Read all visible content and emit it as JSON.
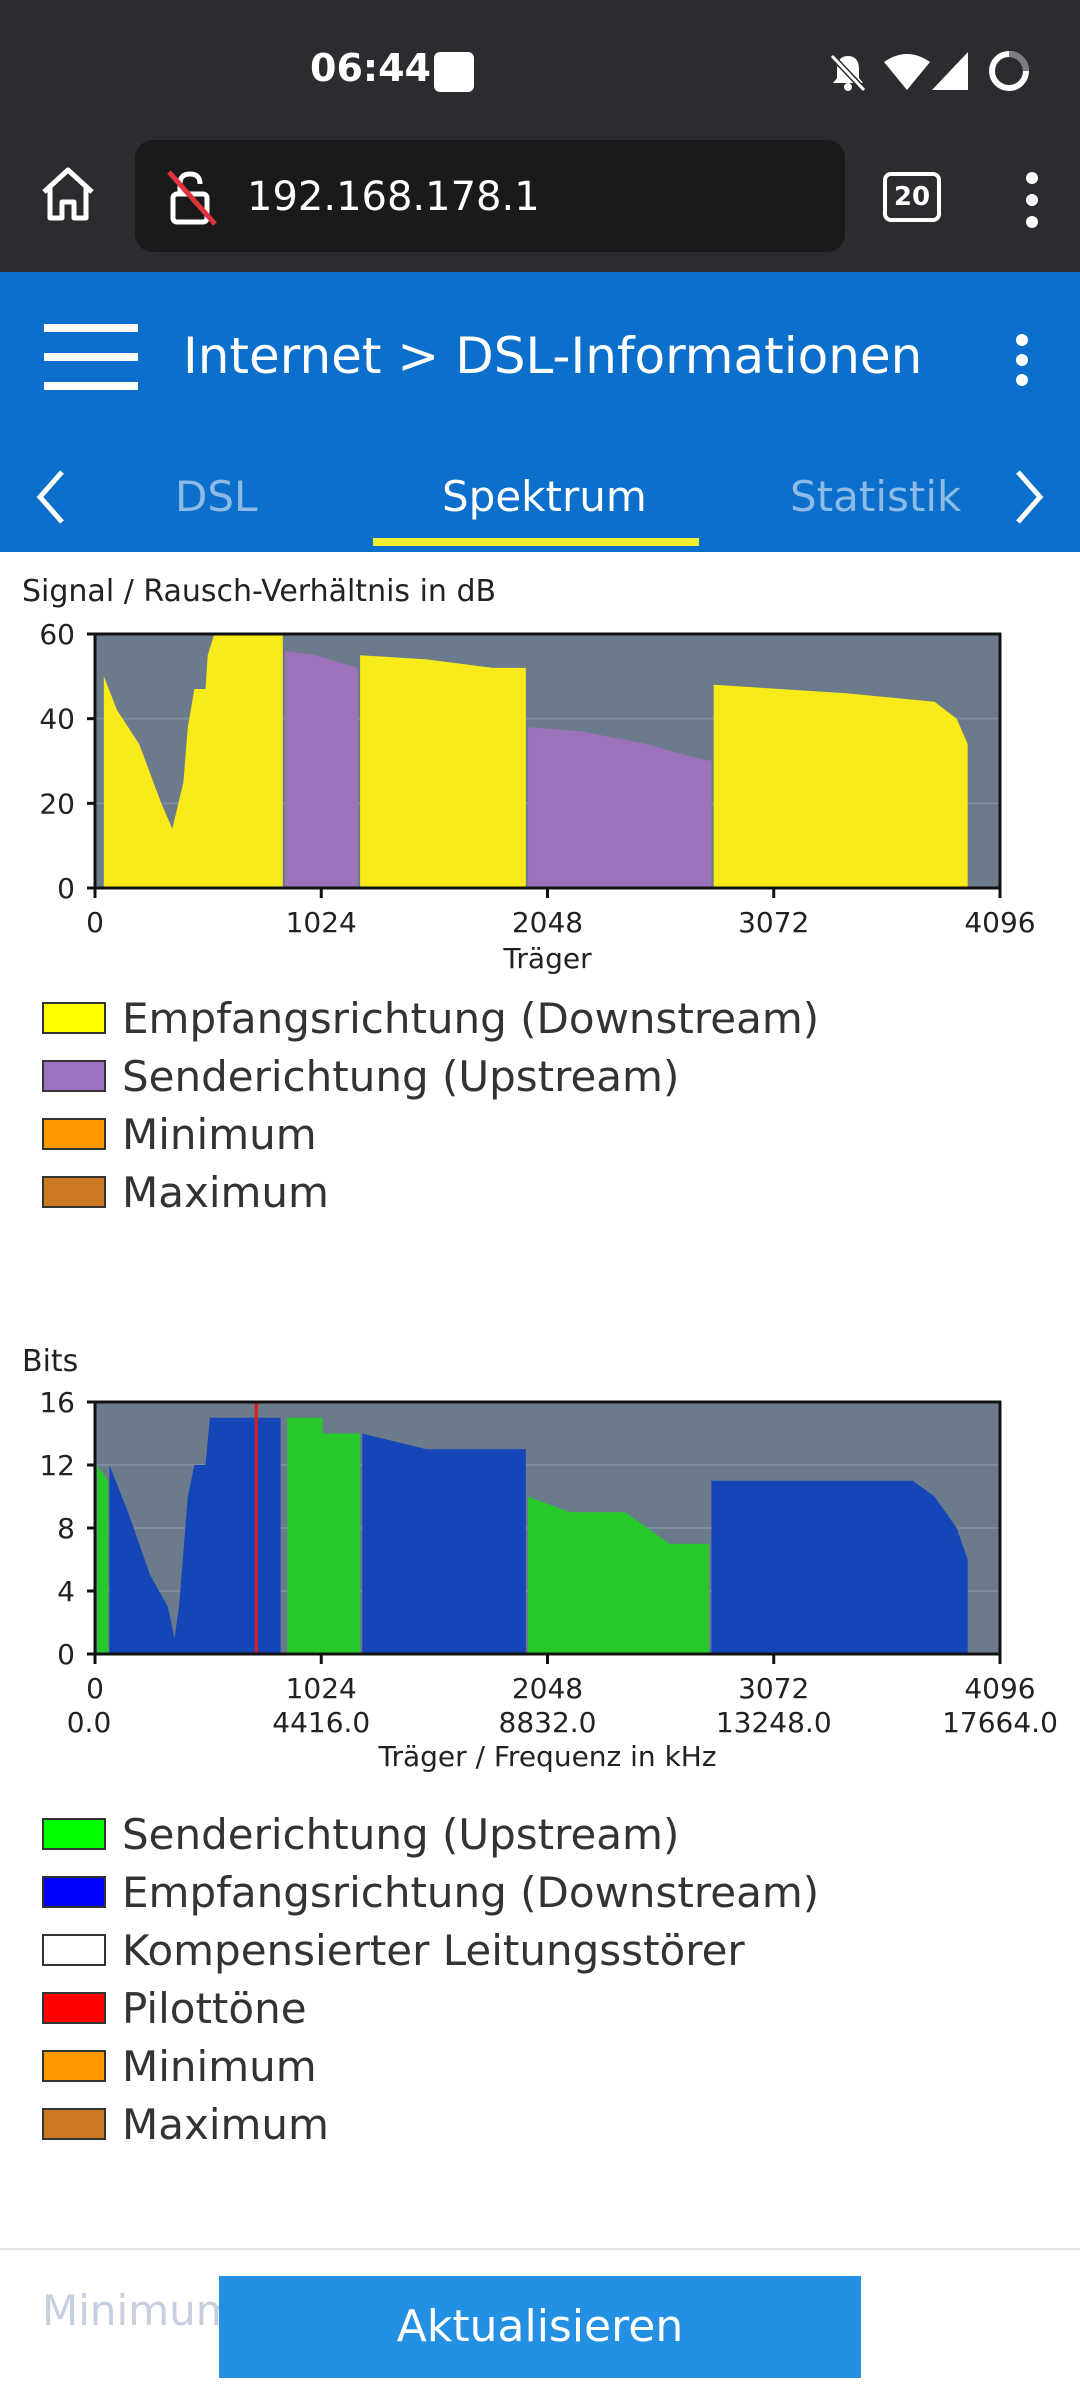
{
  "status_bar": {
    "time": "06:44"
  },
  "browser": {
    "url": "192.168.178.1",
    "tab_count": "20"
  },
  "header": {
    "breadcrumb": "Internet > DSL-Informationen",
    "tabs": [
      {
        "label": "DSL",
        "active": false
      },
      {
        "label": "Spektrum",
        "active": true
      },
      {
        "label": "Statistik",
        "active": false
      }
    ]
  },
  "colors": {
    "accent": "#0b6fcb",
    "tab_indicator": "#f2ef33",
    "button": "#2490e2"
  },
  "chart_data": [
    {
      "type": "area",
      "ylabel": "Signal / Rausch-Verhältnis in dB",
      "xlabel": "Träger",
      "xlim": [
        0,
        4096
      ],
      "ylim": [
        0,
        60
      ],
      "xticks": [
        "0",
        "1024",
        "2048",
        "3072",
        "4096"
      ],
      "yticks": [
        "0",
        "20",
        "40",
        "60"
      ],
      "series": [
        {
          "name": "Empfangsrichtung (Downstream)",
          "color": "#f9ea1a",
          "segments": [
            [
              [
                40,
                0
              ],
              [
                40,
                50
              ],
              [
                100,
                42
              ],
              [
                200,
                34
              ],
              [
                300,
                20
              ],
              [
                350,
                14
              ],
              [
                400,
                25
              ],
              [
                420,
                38
              ],
              [
                450,
                47
              ],
              [
                500,
                47
              ],
              [
                510,
                55
              ],
              [
                540,
                60
              ],
              [
                850,
                60
              ],
              [
                850,
                0
              ]
            ],
            [
              [
                1200,
                0
              ],
              [
                1200,
                55
              ],
              [
                1500,
                54
              ],
              [
                1800,
                52
              ],
              [
                1950,
                52
              ],
              [
                1950,
                0
              ]
            ],
            [
              [
                2800,
                0
              ],
              [
                2800,
                48
              ],
              [
                3100,
                47
              ],
              [
                3400,
                46
              ],
              [
                3800,
                44
              ],
              [
                3900,
                40
              ],
              [
                3950,
                34
              ],
              [
                3950,
                0
              ]
            ]
          ]
        },
        {
          "name": "Senderichtung (Upstream)",
          "color": "#9c73ba",
          "segments": [
            [
              [
                860,
                0
              ],
              [
                860,
                56
              ],
              [
                1000,
                55
              ],
              [
                1190,
                52
              ],
              [
                1190,
                0
              ]
            ],
            [
              [
                1960,
                0
              ],
              [
                1960,
                38
              ],
              [
                2200,
                37
              ],
              [
                2500,
                34
              ],
              [
                2700,
                31
              ],
              [
                2790,
                30
              ],
              [
                2790,
                0
              ]
            ]
          ]
        }
      ],
      "legend": [
        {
          "label": "Empfangsrichtung (Downstream)",
          "color": "#ffff00"
        },
        {
          "label": "Senderichtung (Upstream)",
          "color": "#9b72c0"
        },
        {
          "label": "Minimum",
          "color": "#ff9900"
        },
        {
          "label": "Maximum",
          "color": "#cc7a22"
        }
      ]
    },
    {
      "type": "area",
      "ylabel": "Bits",
      "xlabel": "Träger / Frequenz in kHz",
      "xlim": [
        0,
        4096
      ],
      "ylim": [
        0,
        16
      ],
      "xticks": [
        "0",
        "1024",
        "2048",
        "3072",
        "4096"
      ],
      "xticks2": [
        "0.0",
        "4416.0",
        "8832.0",
        "13248.0",
        "17664.0"
      ],
      "yticks": [
        "0",
        "4",
        "8",
        "12",
        "16"
      ],
      "pilot_tone_x": 730,
      "series": [
        {
          "name": "Senderichtung (Upstream)",
          "color": "#27c92a",
          "segments": [
            [
              [
                10,
                0
              ],
              [
                10,
                12
              ],
              [
                60,
                11
              ],
              [
                60,
                0
              ]
            ],
            [
              [
                870,
                0
              ],
              [
                870,
                15
              ],
              [
                1030,
                15
              ],
              [
                1030,
                14
              ],
              [
                1200,
                14
              ],
              [
                1200,
                0
              ]
            ],
            [
              [
                1960,
                0
              ],
              [
                1960,
                10
              ],
              [
                2150,
                9
              ],
              [
                2400,
                9
              ],
              [
                2500,
                8
              ],
              [
                2600,
                7
              ],
              [
                2780,
                7
              ],
              [
                2780,
                0
              ]
            ]
          ]
        },
        {
          "name": "Empfangsrichtung (Downstream)",
          "color": "#1546b7",
          "segments": [
            [
              [
                65,
                0
              ],
              [
                65,
                12
              ],
              [
                150,
                9
              ],
              [
                250,
                5
              ],
              [
                330,
                3
              ],
              [
                360,
                1
              ],
              [
                380,
                3
              ],
              [
                420,
                10
              ],
              [
                450,
                12
              ],
              [
                500,
                12
              ],
              [
                520,
                15
              ],
              [
                840,
                15
              ],
              [
                840,
                0
              ]
            ],
            [
              [
                1210,
                0
              ],
              [
                1210,
                14
              ],
              [
                1500,
                13
              ],
              [
                1950,
                13
              ],
              [
                1950,
                0
              ]
            ],
            [
              [
                2790,
                0
              ],
              [
                2790,
                11
              ],
              [
                3200,
                11
              ],
              [
                3700,
                11
              ],
              [
                3800,
                10
              ],
              [
                3900,
                8
              ],
              [
                3950,
                6
              ],
              [
                3950,
                0
              ]
            ]
          ]
        }
      ],
      "legend": [
        {
          "label": "Senderichtung (Upstream)",
          "color": "#00ff00"
        },
        {
          "label": "Empfangsrichtung (Downstream)",
          "color": "#0000ff"
        },
        {
          "label": "Kompensierter Leitungsstörer",
          "color": "#ffffff"
        },
        {
          "label": "Pilottöne",
          "color": "#ff0000"
        },
        {
          "label": "Minimum",
          "color": "#ff9900"
        },
        {
          "label": "Maximum",
          "color": "#cc7a22"
        }
      ]
    }
  ],
  "footer": {
    "ghost_label": "Minimum",
    "refresh_button": "Aktualisieren"
  }
}
